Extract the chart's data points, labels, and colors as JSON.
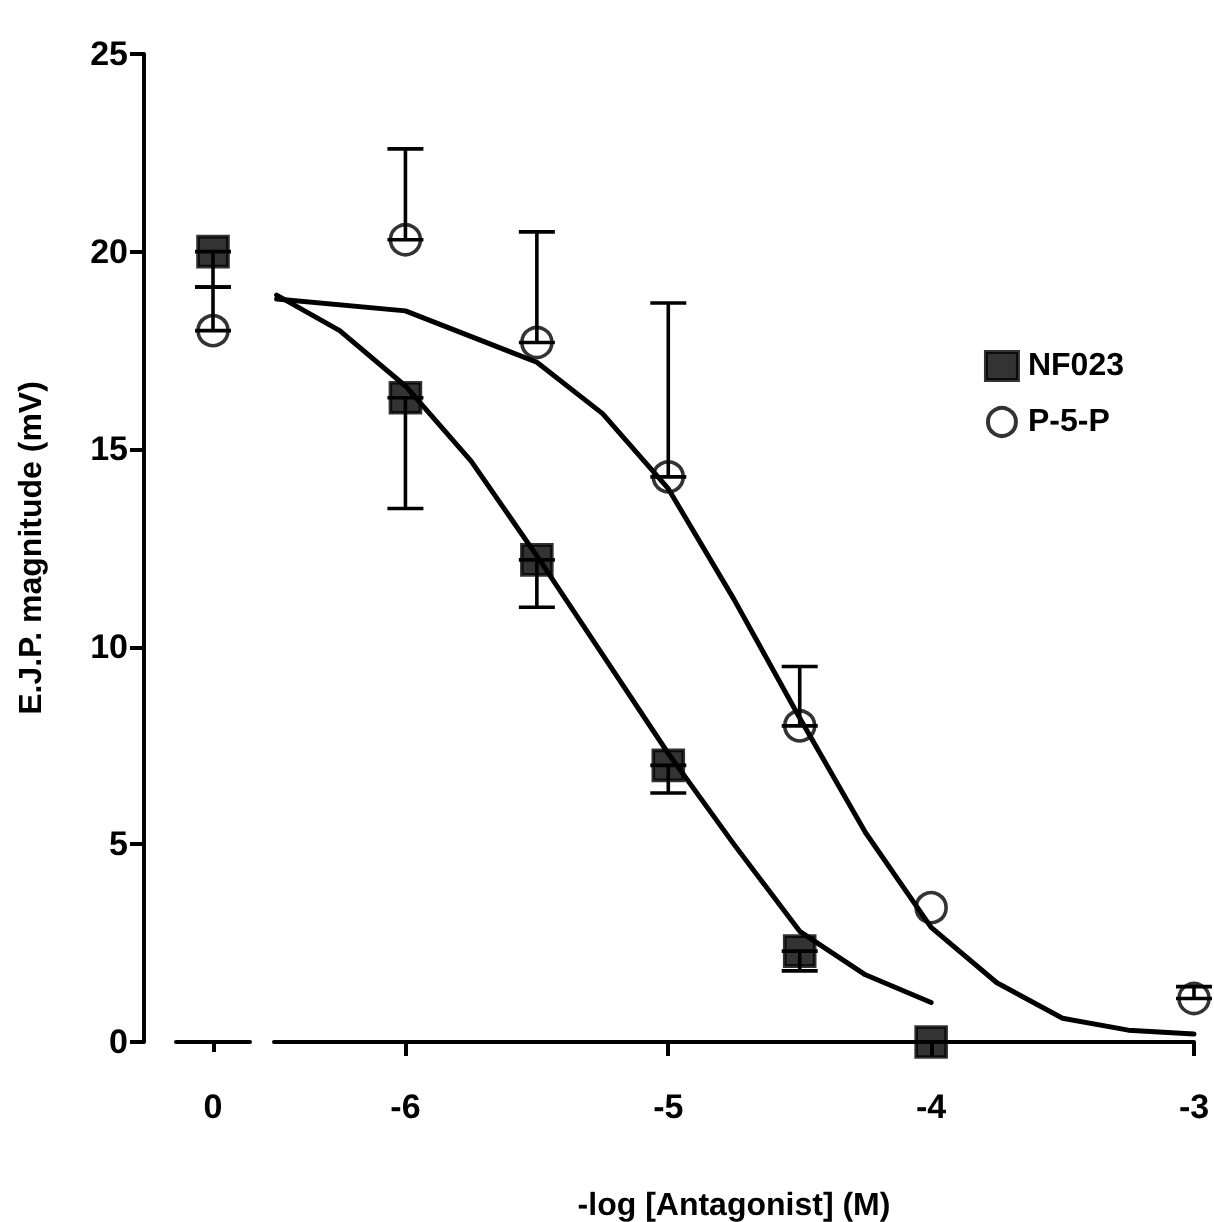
{
  "chart_data": [
    {
      "type": "scatter",
      "ylabel": "E.J.P. magnitude (mV)",
      "categories": [
        "0"
      ],
      "ylim": [
        0,
        25
      ],
      "yticks": [
        0,
        5,
        10,
        15,
        20,
        25
      ],
      "grid": false,
      "legend": false,
      "series": [
        {
          "color": "#000000",
          "marker": "square",
          "values": [
            20.0
          ],
          "errors": [
            [
              19.1,
              20.0
            ]
          ]
        },
        {
          "color": "#000000",
          "marker": "circle",
          "values": [
            18.0
          ],
          "errors": [
            [
              18.0,
              19.1
            ]
          ]
        }
      ]
    },
    {
      "type": "scatter",
      "xlabel": "-log [Antagonist] (M)",
      "xlim": [
        -6.5,
        -3
      ],
      "xticks": [
        -6,
        -5,
        -4,
        -3
      ],
      "ylim": [
        0,
        25
      ],
      "yticks": [
        0,
        5,
        10,
        15,
        20,
        25
      ],
      "tick_labels": "x",
      "grid": false,
      "legend": "top right",
      "series": [
        {
          "name": "NF023",
          "color": "#000000",
          "marker": "square",
          "x": [
            -6,
            -5.5,
            -5,
            -4.5,
            -4
          ],
          "values": [
            16.3,
            12.2,
            7.0,
            2.3,
            0.0
          ],
          "errors": [
            [
              13.5,
              16.3
            ],
            [
              11.0,
              12.2
            ],
            [
              6.3,
              7.0
            ],
            [
              1.8,
              2.3
            ],
            null
          ]
        },
        {
          "name": "P-5-P",
          "color": "#000000",
          "marker": "circle",
          "x": [
            -6,
            -5.5,
            -5,
            -4.5,
            -4,
            -3
          ],
          "values": [
            20.3,
            17.7,
            14.3,
            8.0,
            3.4,
            1.1
          ],
          "errors": [
            [
              20.3,
              22.6
            ],
            [
              17.7,
              20.5
            ],
            [
              14.3,
              18.7
            ],
            [
              8.0,
              9.5
            ],
            null,
            [
              1.1,
              1.4
            ]
          ]
        },
        {
          "type": "line",
          "color": "#000000",
          "marker": "none",
          "x": [
            -6.49,
            -6.25,
            -6,
            -5.75,
            -5.5,
            -5.25,
            -5,
            -4.75,
            -4.5,
            -4.25,
            -4
          ],
          "values": [
            18.9,
            18.0,
            16.6,
            14.7,
            12.3,
            9.8,
            7.3,
            5.0,
            2.8,
            1.7,
            1.0
          ]
        },
        {
          "type": "line",
          "color": "#000000",
          "marker": "none",
          "x": [
            -6.49,
            -6,
            -5.5,
            -5.25,
            -5,
            -4.75,
            -4.5,
            -4.25,
            -4,
            -3.75,
            -3.5,
            -3.25,
            -3
          ],
          "values": [
            18.8,
            18.5,
            17.2,
            15.9,
            14.0,
            11.2,
            8.2,
            5.3,
            2.9,
            1.5,
            0.6,
            0.3,
            0.2
          ]
        }
      ]
    }
  ]
}
